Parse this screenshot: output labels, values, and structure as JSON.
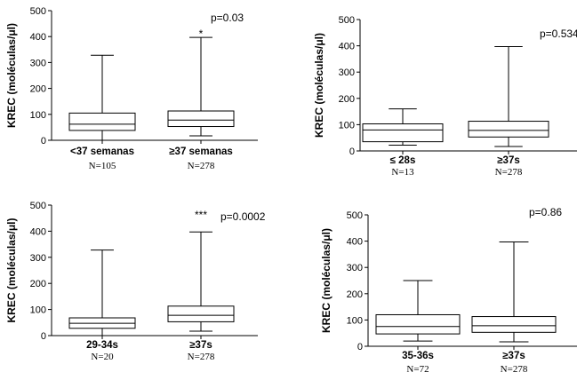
{
  "chart_data": [
    {
      "type": "boxplot",
      "ylabel": "KREC (moléculas/μl)",
      "ylim": [
        0,
        500
      ],
      "yticks": [
        0,
        100,
        200,
        300,
        400,
        500
      ],
      "p_value": "p=0.03",
      "categories": [
        {
          "label": "<37 semanas",
          "n": "N=105",
          "whisker_low": 0,
          "q1": 38,
          "median": 62,
          "q3": 105,
          "whisker_high": 328,
          "marker": ""
        },
        {
          "label": "≥37 semanas",
          "n": "N=278",
          "whisker_low": 17,
          "q1": 53,
          "median": 78,
          "q3": 113,
          "whisker_high": 397,
          "marker": "*"
        }
      ]
    },
    {
      "type": "boxplot",
      "ylabel": "KREC (moléculas/μl)",
      "ylim": [
        0,
        500
      ],
      "yticks": [
        0,
        100,
        200,
        300,
        400,
        500
      ],
      "p_value": "p=0.534",
      "categories": [
        {
          "label": "≤ 28s",
          "n": "N=13",
          "whisker_low": 22,
          "q1": 35,
          "median": 80,
          "q3": 103,
          "whisker_high": 160,
          "marker": ""
        },
        {
          "label": "≥37s",
          "n": "N=278",
          "whisker_low": 17,
          "q1": 53,
          "median": 78,
          "q3": 113,
          "whisker_high": 397,
          "marker": ""
        }
      ]
    },
    {
      "type": "boxplot",
      "ylabel": "KREC (moléculas/μl)",
      "ylim": [
        0,
        500
      ],
      "yticks": [
        0,
        100,
        200,
        300,
        400,
        500
      ],
      "p_value": "p=0.0002",
      "categories": [
        {
          "label": "29-34s",
          "n": "N=20",
          "whisker_low": 0,
          "q1": 28,
          "median": 47,
          "q3": 68,
          "whisker_high": 328,
          "marker": ""
        },
        {
          "label": "≥37s",
          "n": "N=278",
          "whisker_low": 17,
          "q1": 53,
          "median": 78,
          "q3": 113,
          "whisker_high": 397,
          "marker": "***"
        }
      ]
    },
    {
      "type": "boxplot",
      "ylabel": "KREC (moléculas/μl)",
      "ylim": [
        0,
        500
      ],
      "yticks": [
        0,
        100,
        200,
        300,
        400,
        500
      ],
      "p_value": "p=0.86",
      "categories": [
        {
          "label": "35-36s",
          "n": "N=72",
          "whisker_low": 20,
          "q1": 47,
          "median": 75,
          "q3": 120,
          "whisker_high": 250,
          "marker": ""
        },
        {
          "label": "≥37s",
          "n": "N=278",
          "whisker_low": 17,
          "q1": 53,
          "median": 78,
          "q3": 113,
          "whisker_high": 397,
          "marker": ""
        }
      ]
    }
  ]
}
